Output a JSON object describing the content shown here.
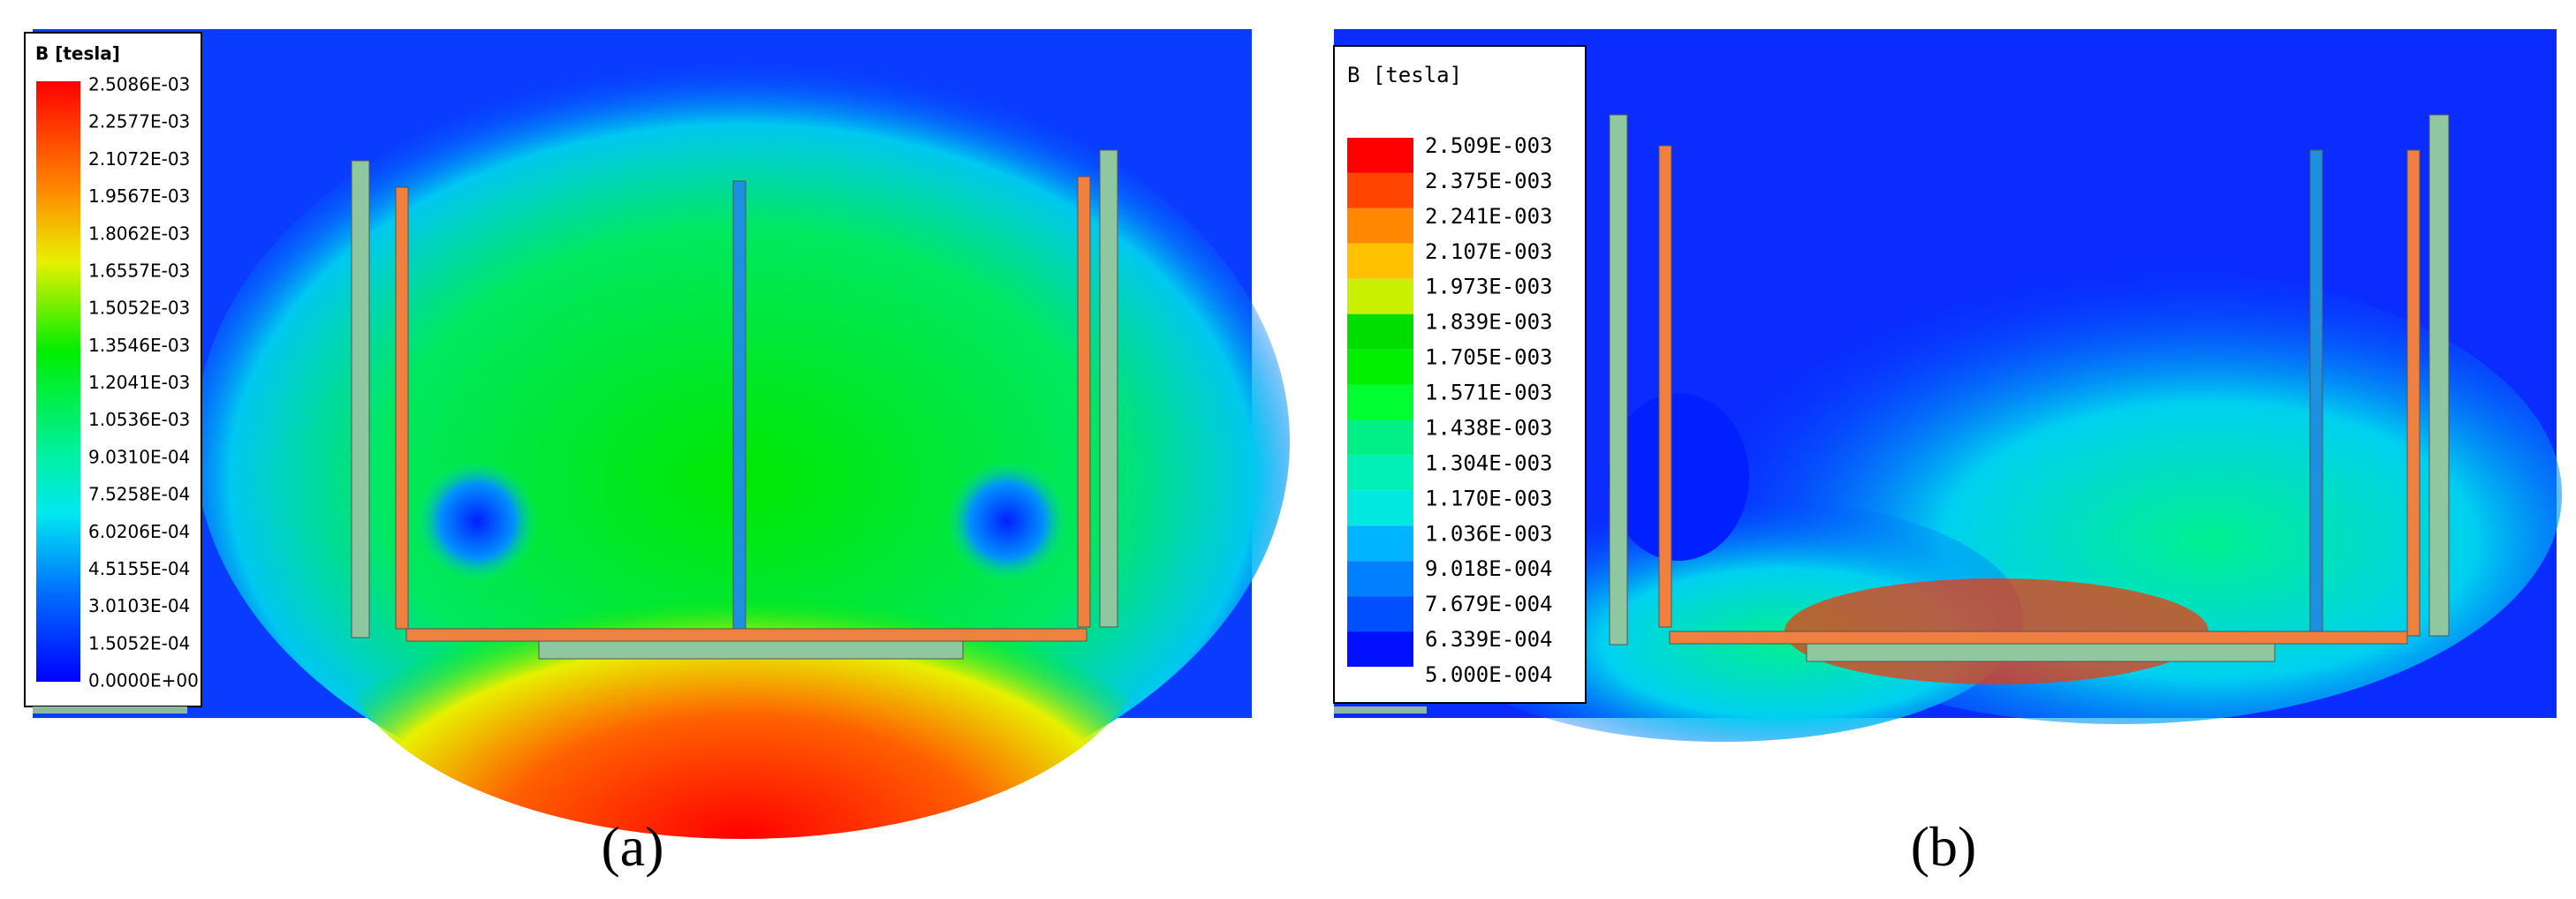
{
  "panels": [
    {
      "legend": {
        "title": "B [tesla]",
        "labels": [
          "2.5086E-03",
          "2.2577E-03",
          "2.1072E-03",
          "1.9567E-03",
          "1.8062E-03",
          "1.6557E-03",
          "1.5052E-03",
          "1.3546E-03",
          "1.2041E-03",
          "1.0536E-03",
          "9.0310E-04",
          "7.5258E-04",
          "6.0206E-04",
          "4.5155E-04",
          "3.0103E-04",
          "1.5052E-04",
          "0.0000E+00"
        ]
      },
      "caption": "(a)"
    },
    {
      "legend": {
        "title": "B [tesla]",
        "labels": [
          "2.509E-003",
          "2.375E-003",
          "2.241E-003",
          "2.107E-003",
          "1.973E-003",
          "1.839E-003",
          "1.705E-003",
          "1.571E-003",
          "1.438E-003",
          "1.304E-003",
          "1.170E-003",
          "1.036E-003",
          "9.018E-004",
          "7.679E-004",
          "6.339E-004",
          "5.000E-004"
        ],
        "colors": [
          "#ff0000",
          "#ff4400",
          "#ff8800",
          "#ffc000",
          "#c8f000",
          "#00dd00",
          "#00f000",
          "#00ff30",
          "#00f088",
          "#00f0b8",
          "#00e8e0",
          "#00b4ff",
          "#0080ff",
          "#0050ff",
          "#0010ff"
        ]
      },
      "caption": "(b)"
    }
  ]
}
